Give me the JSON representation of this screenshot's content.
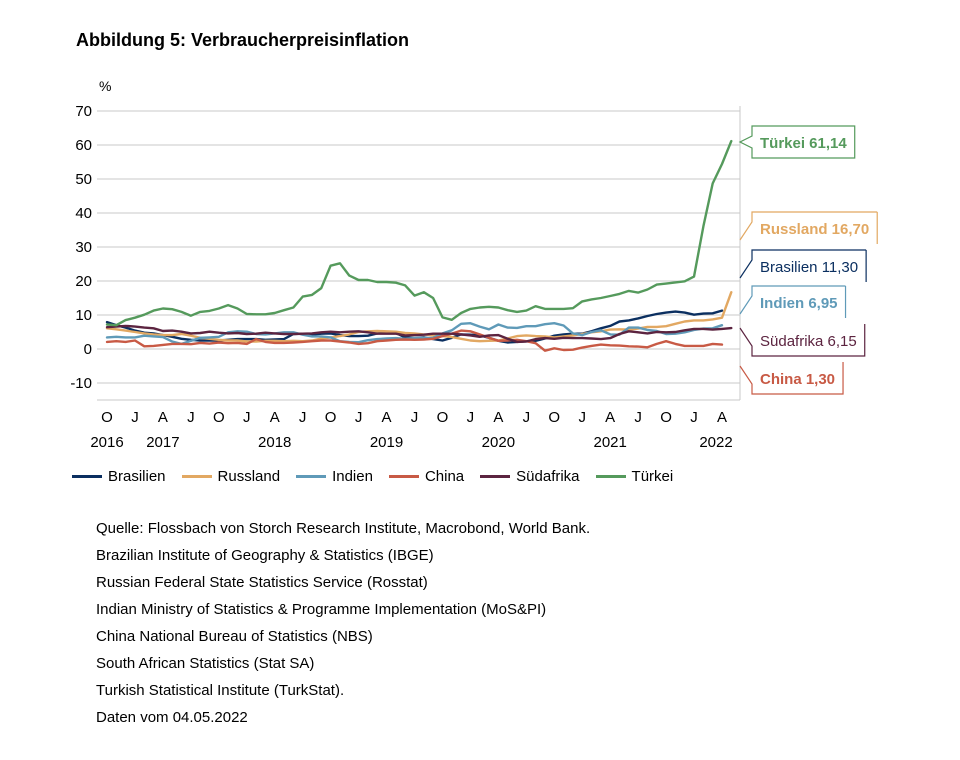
{
  "title": "Abbildung 5: Verbraucherpreisinflation",
  "colors": {
    "Brasilien": "#0b2f60",
    "Russland": "#e2a862",
    "Indien": "#5f9ab8",
    "China": "#c85a45",
    "Südafrika": "#5c2440",
    "Türkei": "#559a5c"
  },
  "chart_data": {
    "type": "line",
    "ylabel": "%",
    "ylim": [
      -10,
      70
    ],
    "yticks": [
      "70",
      "60",
      "50",
      "40",
      "30",
      "20",
      "10",
      "0",
      "-10"
    ],
    "grid": true,
    "x_start": "2016-10",
    "x_end": "2022-04",
    "xticks": [
      {
        "month": "O",
        "year": "2016"
      },
      {
        "month": "J",
        "year": ""
      },
      {
        "month": "A",
        "year": "2017"
      },
      {
        "month": "J",
        "year": ""
      },
      {
        "month": "O",
        "year": ""
      },
      {
        "month": "J",
        "year": ""
      },
      {
        "month": "A",
        "year": "2018"
      },
      {
        "month": "J",
        "year": ""
      },
      {
        "month": "O",
        "year": ""
      },
      {
        "month": "J",
        "year": ""
      },
      {
        "month": "A",
        "year": "2019"
      },
      {
        "month": "J",
        "year": ""
      },
      {
        "month": "O",
        "year": ""
      },
      {
        "month": "J",
        "year": ""
      },
      {
        "month": "A",
        "year": "2020"
      },
      {
        "month": "J",
        "year": ""
      },
      {
        "month": "O",
        "year": ""
      },
      {
        "month": "J",
        "year": ""
      },
      {
        "month": "A",
        "year": "2021"
      },
      {
        "month": "J",
        "year": ""
      },
      {
        "month": "O",
        "year": ""
      },
      {
        "month": "J",
        "year": ""
      },
      {
        "month": "A",
        "year": "2022"
      }
    ],
    "series": [
      {
        "name": "Brasilien",
        "label": "Brasilien 11,30",
        "values": [
          7.9,
          7.0,
          6.3,
          5.4,
          4.8,
          4.6,
          4.1,
          3.6,
          3.0,
          2.7,
          2.5,
          2.5,
          2.5,
          2.7,
          2.9,
          2.9,
          2.9,
          2.7,
          2.8,
          2.9,
          4.4,
          4.5,
          4.2,
          4.5,
          4.6,
          4.1,
          3.8,
          3.8,
          3.9,
          4.6,
          4.9,
          4.7,
          3.4,
          3.2,
          3.4,
          2.9,
          2.5,
          3.3,
          4.3,
          4.2,
          4.0,
          3.3,
          2.4,
          1.9,
          2.1,
          2.3,
          2.4,
          3.1,
          3.9,
          4.3,
          4.5,
          4.5,
          5.2,
          6.1,
          6.8,
          8.1,
          8.4,
          9.0,
          9.7,
          10.3,
          10.7,
          11.0,
          10.7,
          10.1,
          10.4,
          10.5,
          11.3
        ]
      },
      {
        "name": "Russland",
        "label": "Russland 16,70",
        "values": [
          6.1,
          5.8,
          5.4,
          5.0,
          4.6,
          4.3,
          4.1,
          4.1,
          4.4,
          3.9,
          3.3,
          3.0,
          2.7,
          2.5,
          2.5,
          2.2,
          2.2,
          2.4,
          2.4,
          2.3,
          2.4,
          2.3,
          2.5,
          3.1,
          3.4,
          3.8,
          4.3,
          5.0,
          5.2,
          5.3,
          5.2,
          5.1,
          4.7,
          4.6,
          4.3,
          4.0,
          3.8,
          3.5,
          3.0,
          2.5,
          2.3,
          2.4,
          2.5,
          3.1,
          3.8,
          4.0,
          3.8,
          3.7,
          3.4,
          3.7,
          4.0,
          4.4,
          4.9,
          5.2,
          5.7,
          5.8,
          5.7,
          6.0,
          6.5,
          6.5,
          6.7,
          7.4,
          8.1,
          8.4,
          8.4,
          8.7,
          9.2,
          16.7
        ]
      },
      {
        "name": "Indien",
        "label": "Indien 6,95",
        "values": [
          3.4,
          3.6,
          3.4,
          3.4,
          3.9,
          3.7,
          3.5,
          2.2,
          1.5,
          2.4,
          3.3,
          3.4,
          3.6,
          4.9,
          5.2,
          5.1,
          4.4,
          4.3,
          4.6,
          4.9,
          4.9,
          4.2,
          3.7,
          3.7,
          3.4,
          2.3,
          2.1,
          2.0,
          2.6,
          2.9,
          3.1,
          3.2,
          3.0,
          3.2,
          3.2,
          3.3,
          4.6,
          5.5,
          7.4,
          7.6,
          6.6,
          5.8,
          7.2,
          6.3,
          6.2,
          6.7,
          6.7,
          7.3,
          7.6,
          6.9,
          4.6,
          4.1,
          5.0,
          5.5,
          4.3,
          4.2,
          6.3,
          6.3,
          5.6,
          5.3,
          4.4,
          4.5,
          4.9,
          5.6,
          6.0,
          6.1,
          7.0
        ]
      },
      {
        "name": "China",
        "label": "China 1,30",
        "values": [
          2.1,
          2.3,
          2.1,
          2.5,
          0.8,
          0.9,
          1.2,
          1.5,
          1.5,
          1.4,
          1.8,
          1.6,
          1.9,
          1.7,
          1.8,
          1.5,
          2.9,
          2.1,
          1.8,
          1.8,
          1.9,
          2.1,
          2.3,
          2.5,
          2.5,
          2.2,
          1.9,
          1.5,
          1.7,
          2.3,
          2.5,
          2.7,
          2.8,
          2.7,
          2.8,
          3.0,
          3.8,
          4.5,
          5.4,
          5.2,
          4.3,
          3.3,
          2.4,
          2.5,
          2.7,
          2.3,
          1.7,
          -0.5,
          0.2,
          -0.3,
          -0.2,
          0.4,
          0.9,
          1.3,
          1.1,
          1.0,
          0.8,
          0.7,
          0.5,
          1.5,
          2.3,
          1.5,
          0.9,
          0.9,
          0.9,
          1.5,
          1.3
        ]
      },
      {
        "name": "Südafrika",
        "label": "Südafrika 6,15",
        "values": [
          6.4,
          6.6,
          6.8,
          6.6,
          6.3,
          6.1,
          5.3,
          5.4,
          5.1,
          4.6,
          4.7,
          5.1,
          4.8,
          4.6,
          4.7,
          4.4,
          4.5,
          4.8,
          4.6,
          4.4,
          4.4,
          4.5,
          4.6,
          4.9,
          5.1,
          4.9,
          5.1,
          5.2,
          4.9,
          4.5,
          4.5,
          4.5,
          4.0,
          4.1,
          4.2,
          4.5,
          4.5,
          4.5,
          4.3,
          4.0,
          3.6,
          4.0,
          4.1,
          3.0,
          2.1,
          2.2,
          2.9,
          3.2,
          3.0,
          3.3,
          3.2,
          3.2,
          3.1,
          2.9,
          3.2,
          4.4,
          5.2,
          4.9,
          4.6,
          5.0,
          4.9,
          5.0,
          5.5,
          5.9,
          5.9,
          5.7,
          5.9,
          6.15
        ]
      },
      {
        "name": "Türkei",
        "label": "Türkei 61,14",
        "values": [
          7.2,
          7.0,
          8.5,
          9.2,
          10.1,
          11.3,
          11.9,
          11.7,
          10.9,
          9.8,
          10.9,
          11.2,
          11.9,
          12.9,
          11.9,
          10.3,
          10.2,
          10.2,
          10.6,
          11.4,
          12.2,
          15.4,
          15.9,
          17.9,
          24.5,
          25.2,
          21.6,
          20.3,
          20.3,
          19.7,
          19.7,
          19.5,
          18.7,
          15.7,
          16.7,
          15.0,
          9.3,
          8.6,
          10.6,
          11.8,
          12.2,
          12.4,
          12.2,
          11.4,
          10.9,
          11.3,
          12.6,
          11.8,
          11.8,
          11.8,
          12.0,
          14.0,
          14.6,
          15.0,
          15.6,
          16.2,
          17.1,
          16.6,
          17.5,
          18.95,
          19.25,
          19.6,
          19.9,
          21.3,
          36.1,
          48.7,
          54.4,
          61.14
        ]
      }
    ]
  },
  "source_lines": [
    "Quelle: Flossbach von Storch Research Institute, Macrobond, World Bank.",
    "Brazilian Institute of Geography & Statistics (IBGE)",
    "Russian Federal State Statistics Service (Rosstat)",
    "Indian Ministry of Statistics & Programme Implementation (MoS&PI)",
    "China National Bureau of Statistics (NBS)",
    "South African Statistics (Stat SA)",
    "Turkish Statistical Institute (TurkStat).",
    "Daten vom 04.05.2022"
  ]
}
